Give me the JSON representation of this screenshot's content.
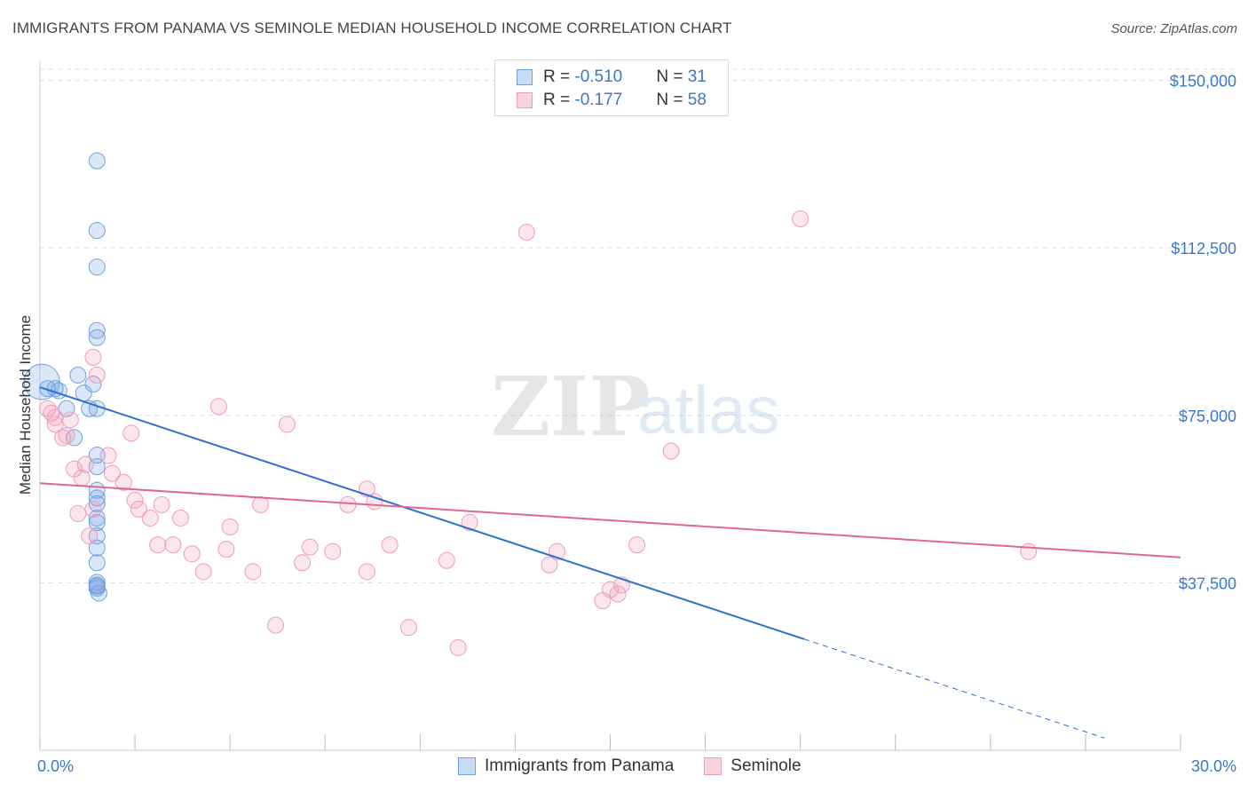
{
  "header": {
    "title": "IMMIGRANTS FROM PANAMA VS SEMINOLE MEDIAN HOUSEHOLD INCOME CORRELATION CHART",
    "source": "Source: ZipAtlas.com"
  },
  "watermark": {
    "zip": "ZIP",
    "atlas": "atlas"
  },
  "legend": {
    "rows": [
      {
        "r_label": "R = ",
        "r_value": "-0.510",
        "n_label": "N = ",
        "n_value": "31",
        "color": "#6fa1e0"
      },
      {
        "r_label": "R = ",
        "r_value": "-0.177",
        "n_label": "N = ",
        "n_value": "58",
        "color": "#f19bb8"
      }
    ]
  },
  "bottom_legend": {
    "items": [
      {
        "label": "Immigrants from Panama",
        "color": "#6fa1e0"
      },
      {
        "label": "Seminole",
        "color": "#f19bb8"
      }
    ]
  },
  "chart_data": {
    "type": "scatter",
    "title": "IMMIGRANTS FROM PANAMA VS SEMINOLE MEDIAN HOUSEHOLD INCOME CORRELATION CHART",
    "ylabel": "Median Household Income",
    "xlabel": "",
    "xlim": [
      0,
      30
    ],
    "ylim": [
      0,
      152500
    ],
    "x_tick_labels": [
      "0.0%",
      "30.0%"
    ],
    "y_ticks": [
      37500,
      75000,
      112500,
      150000
    ],
    "y_tick_labels": [
      "$37,500",
      "$75,000",
      "$112,500",
      "$150,000"
    ],
    "grid": true,
    "series": [
      {
        "name": "Immigrants from Panama",
        "color": "#6fa1e0",
        "trend": {
          "x0": 0,
          "y0": 81300,
          "x1": 20.1,
          "y1": 24900,
          "dash_to_x": 28.0
        },
        "points": [
          [
            0.05,
            82500
          ],
          [
            0.2,
            81000
          ],
          [
            0.4,
            81000
          ],
          [
            0.5,
            80500
          ],
          [
            0.7,
            76500
          ],
          [
            0.9,
            70000
          ],
          [
            1.0,
            84000
          ],
          [
            1.15,
            80000
          ],
          [
            1.3,
            76500
          ],
          [
            1.4,
            82000
          ],
          [
            1.5,
            56500
          ],
          [
            1.5,
            52000
          ],
          [
            1.5,
            63500
          ],
          [
            1.55,
            35200
          ],
          [
            1.5,
            36300
          ],
          [
            1.5,
            36700
          ],
          [
            1.5,
            37000
          ],
          [
            1.5,
            45300
          ],
          [
            1.5,
            51000
          ],
          [
            1.5,
            92400
          ],
          [
            1.5,
            108200
          ],
          [
            1.5,
            116400
          ],
          [
            1.5,
            132000
          ],
          [
            1.5,
            94000
          ],
          [
            1.5,
            76500
          ],
          [
            1.5,
            55200
          ],
          [
            1.5,
            58200
          ],
          [
            1.5,
            48000
          ],
          [
            1.5,
            42000
          ],
          [
            1.5,
            37600
          ],
          [
            1.5,
            66100
          ]
        ]
      },
      {
        "name": "Seminole",
        "color": "#f19bb8",
        "trend": {
          "x0": 0,
          "y0": 59800,
          "x1": 30,
          "y1": 43200
        },
        "points": [
          [
            0.2,
            76500
          ],
          [
            0.3,
            75500
          ],
          [
            0.4,
            74500
          ],
          [
            0.4,
            73000
          ],
          [
            0.6,
            70000
          ],
          [
            0.7,
            70500
          ],
          [
            0.8,
            74000
          ],
          [
            0.9,
            63000
          ],
          [
            1.0,
            53000
          ],
          [
            1.1,
            61000
          ],
          [
            1.2,
            64000
          ],
          [
            1.3,
            48000
          ],
          [
            1.4,
            54000
          ],
          [
            1.4,
            88000
          ],
          [
            1.5,
            84000
          ],
          [
            1.8,
            66000
          ],
          [
            1.9,
            62000
          ],
          [
            2.2,
            60000
          ],
          [
            2.4,
            71000
          ],
          [
            2.5,
            56000
          ],
          [
            2.6,
            54000
          ],
          [
            2.9,
            52000
          ],
          [
            3.1,
            46000
          ],
          [
            3.2,
            55000
          ],
          [
            3.5,
            46000
          ],
          [
            3.7,
            52000
          ],
          [
            4.0,
            44000
          ],
          [
            4.3,
            40000
          ],
          [
            4.7,
            77000
          ],
          [
            4.9,
            45000
          ],
          [
            5.0,
            50000
          ],
          [
            5.6,
            40000
          ],
          [
            5.8,
            55000
          ],
          [
            6.2,
            28000
          ],
          [
            6.5,
            73000
          ],
          [
            6.9,
            42000
          ],
          [
            7.1,
            45500
          ],
          [
            7.7,
            44500
          ],
          [
            8.1,
            55000
          ],
          [
            8.6,
            40000
          ],
          [
            8.6,
            58500
          ],
          [
            8.8,
            55700
          ],
          [
            9.2,
            46000
          ],
          [
            9.7,
            27500
          ],
          [
            10.7,
            42500
          ],
          [
            11.0,
            23000
          ],
          [
            11.3,
            51000
          ],
          [
            12.8,
            116000
          ],
          [
            13.4,
            41500
          ],
          [
            13.6,
            44500
          ],
          [
            14.8,
            33500
          ],
          [
            15.0,
            36000
          ],
          [
            15.2,
            35000
          ],
          [
            15.7,
            46000
          ],
          [
            16.6,
            67000
          ],
          [
            20.0,
            119000
          ],
          [
            26.0,
            44500
          ],
          [
            15.3,
            37000
          ]
        ]
      }
    ]
  }
}
